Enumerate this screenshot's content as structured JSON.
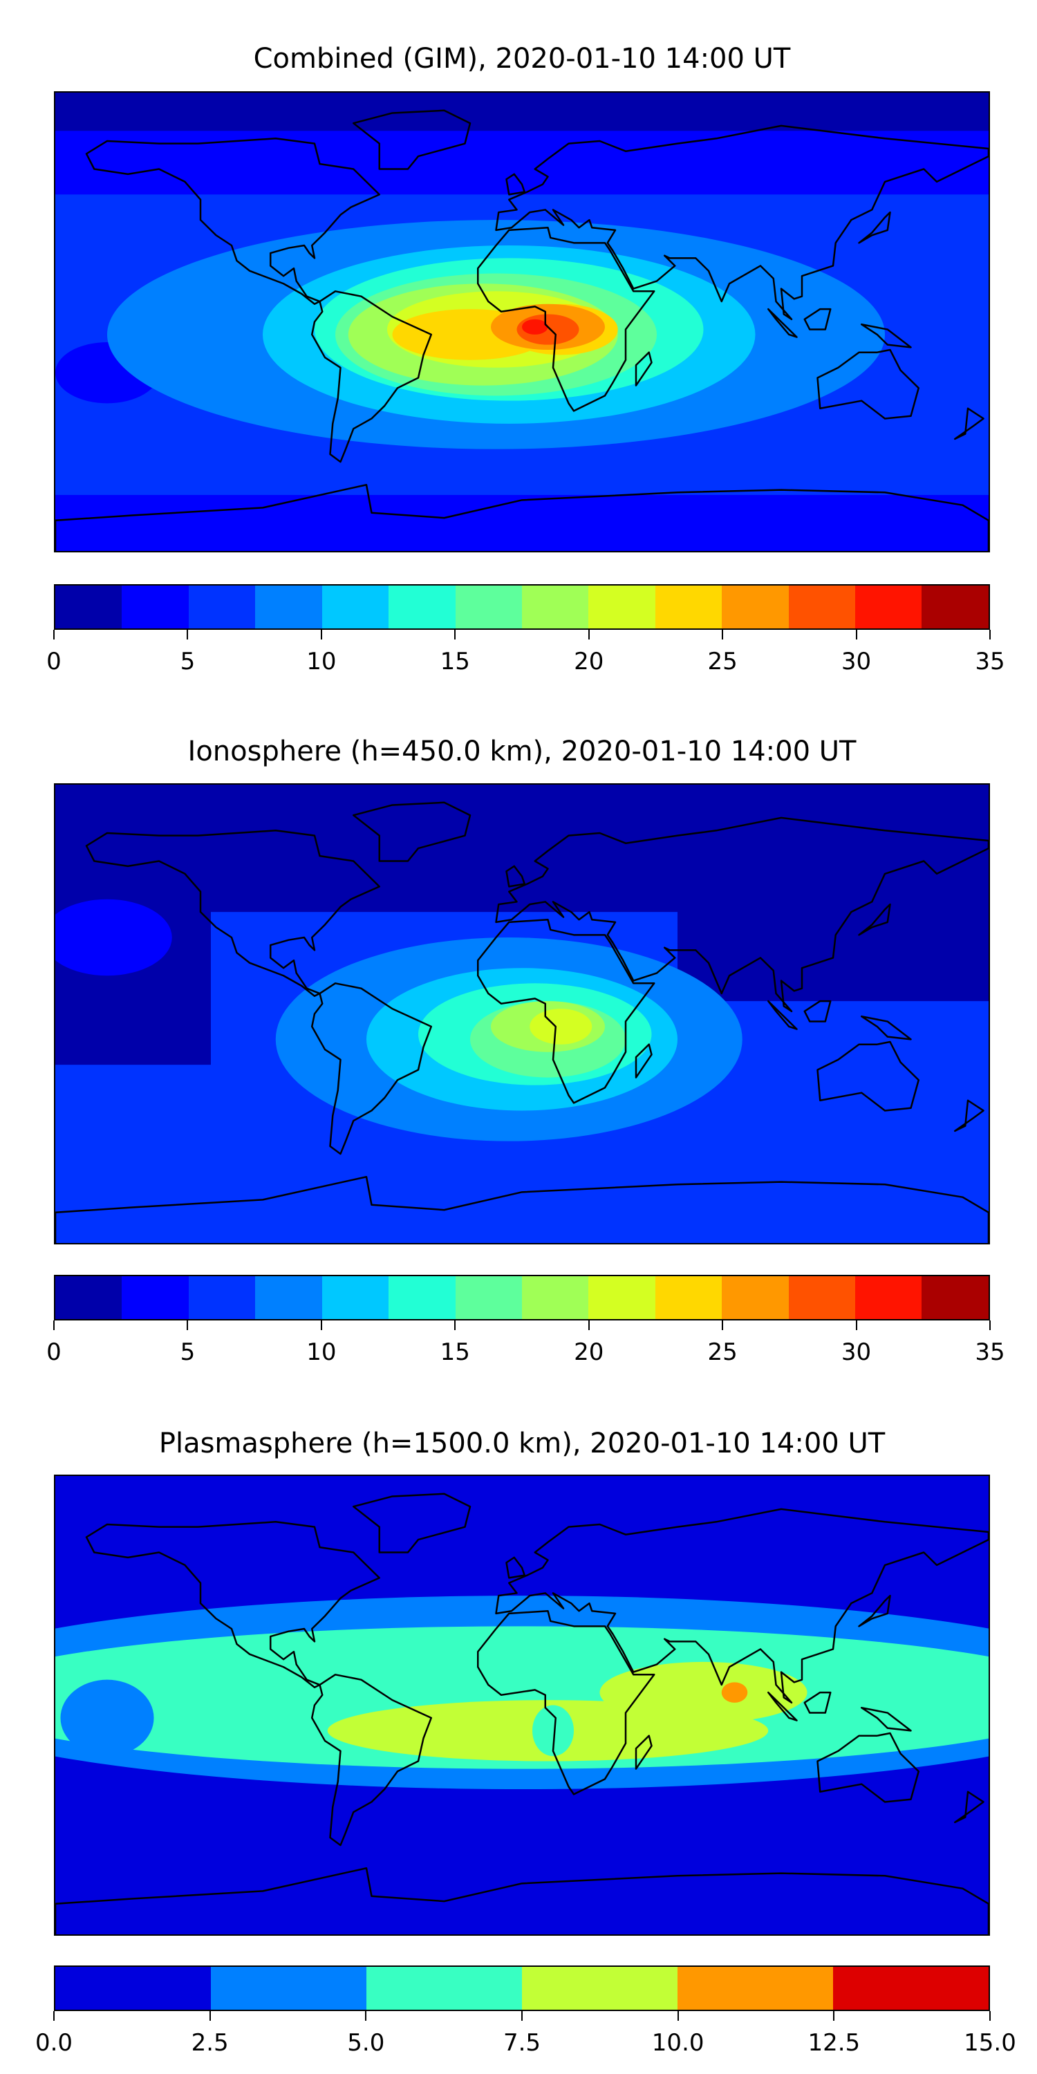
{
  "chart_data": [
    {
      "type": "heatmap",
      "title": "Combined (GIM), 2020-01-10 14:00 UT",
      "projection": "equirectangular global map with coastlines",
      "lon_range": [
        -180,
        180
      ],
      "lat_range": [
        -90,
        90
      ],
      "colorbar": {
        "levels": [
          0,
          2.5,
          5,
          7.5,
          10,
          12.5,
          15,
          17.5,
          20,
          22.5,
          25,
          27.5,
          30,
          32.5,
          35
        ],
        "tick_values": [
          0,
          5,
          10,
          15,
          20,
          25,
          30,
          35
        ],
        "tick_labels": [
          "0",
          "5",
          "10",
          "15",
          "20",
          "25",
          "30",
          "35"
        ],
        "colors": [
          "#0000aa",
          "#0000ff",
          "#0033ff",
          "#0080ff",
          "#00c8ff",
          "#22ffd5",
          "#5eff9c",
          "#a0ff56",
          "#d4ff22",
          "#ffd800",
          "#ff9800",
          "#ff5200",
          "#ff1400",
          "#aa0000"
        ]
      },
      "peak": {
        "lon": 5,
        "lat": -2,
        "value_range": [
          30,
          32.5
        ]
      }
    },
    {
      "type": "heatmap",
      "title": "Ionosphere  (h=450.0 km), 2020-01-10 14:00 UT",
      "projection": "equirectangular global map with coastlines",
      "lon_range": [
        -180,
        180
      ],
      "lat_range": [
        -90,
        90
      ],
      "colorbar": {
        "levels": [
          0,
          2.5,
          5,
          7.5,
          10,
          12.5,
          15,
          17.5,
          20,
          22.5,
          25,
          27.5,
          30,
          32.5,
          35
        ],
        "tick_values": [
          0,
          5,
          10,
          15,
          20,
          25,
          30,
          35
        ],
        "tick_labels": [
          "0",
          "5",
          "10",
          "15",
          "20",
          "25",
          "30",
          "35"
        ],
        "colors": [
          "#0000aa",
          "#0000ff",
          "#0033ff",
          "#0080ff",
          "#00c8ff",
          "#22ffd5",
          "#5eff9c",
          "#a0ff56",
          "#d4ff22",
          "#ffd800",
          "#ff9800",
          "#ff5200",
          "#ff1400",
          "#aa0000"
        ]
      },
      "peak": {
        "lon": 15,
        "lat": -5,
        "value_range": [
          20,
          22.5
        ]
      }
    },
    {
      "type": "heatmap",
      "title": "Plasmasphere (h=1500.0 km), 2020-01-10 14:00 UT",
      "projection": "equirectangular global map with coastlines",
      "lon_range": [
        -180,
        180
      ],
      "lat_range": [
        -90,
        90
      ],
      "colorbar": {
        "levels": [
          0,
          2.5,
          5,
          7.5,
          10,
          12.5,
          15
        ],
        "tick_values": [
          0,
          2.5,
          5,
          7.5,
          10,
          12.5,
          15
        ],
        "tick_labels": [
          "0.0",
          "2.5",
          "5.0",
          "7.5",
          "10.0",
          "12.5",
          "15.0"
        ],
        "colors": [
          "#0000dd",
          "#0080ff",
          "#38ffc2",
          "#c2ff36",
          "#ff9800",
          "#dd0000"
        ]
      },
      "peak": {
        "lon": 82,
        "lat": 5,
        "value_range": [
          10,
          12.5
        ]
      }
    }
  ]
}
